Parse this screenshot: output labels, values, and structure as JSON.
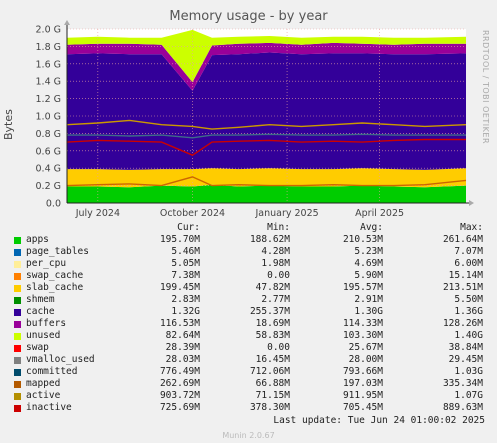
{
  "chart_data": {
    "type": "area",
    "title": "Memory usage - by year",
    "ylabel": "Bytes",
    "yunit": "G",
    "ylim": [
      0,
      2.0
    ],
    "yticks": [
      "0.0",
      "0.2 G",
      "0.4 G",
      "0.6 G",
      "0.8 G",
      "1.0 G",
      "1.2 G",
      "1.4 G",
      "1.6 G",
      "1.8 G",
      "2.0 G"
    ],
    "xticks": [
      "July 2024",
      "October 2024",
      "January 2025",
      "April 2025"
    ],
    "xrange": [
      "2024-06-01",
      "2025-06-24"
    ],
    "xtick_dates": [
      "2024-07-01",
      "2024-10-01",
      "2025-01-01",
      "2025-04-01"
    ],
    "grid": true,
    "stacked_areas": [
      {
        "name": "apps",
        "color": "#00cc00",
        "values": [
          0.19,
          0.19,
          0.18,
          0.2,
          0.19,
          0.21,
          0.19,
          0.2,
          0.19,
          0.19,
          0.2,
          0.19,
          0.18,
          0.2
        ]
      },
      {
        "name": "slab_cache",
        "color": "#ffcc00",
        "values": [
          0.2,
          0.2,
          0.2,
          0.19,
          0.2,
          0.19,
          0.2,
          0.2,
          0.2,
          0.2,
          0.2,
          0.2,
          0.2,
          0.2
        ]
      },
      {
        "name": "cache",
        "color": "#330099",
        "values": [
          1.32,
          1.33,
          1.33,
          1.32,
          0.9,
          1.3,
          1.32,
          1.33,
          1.32,
          1.33,
          1.32,
          1.32,
          1.33,
          1.32
        ]
      },
      {
        "name": "buffers",
        "color": "#990099",
        "values": [
          0.11,
          0.11,
          0.12,
          0.11,
          0.1,
          0.11,
          0.12,
          0.11,
          0.11,
          0.12,
          0.11,
          0.11,
          0.12,
          0.11
        ]
      },
      {
        "name": "unused",
        "color": "#ccff00",
        "values": [
          0.08,
          0.08,
          0.07,
          0.08,
          0.6,
          0.09,
          0.08,
          0.08,
          0.08,
          0.07,
          0.08,
          0.08,
          0.07,
          0.08
        ]
      }
    ],
    "lines": [
      {
        "name": "active",
        "color": "#cc9900",
        "values": [
          0.9,
          0.92,
          0.95,
          0.9,
          0.88,
          0.85,
          0.87,
          0.9,
          0.88,
          0.9,
          0.92,
          0.9,
          0.88,
          0.9
        ]
      },
      {
        "name": "committed",
        "color": "#3e6b8a",
        "values": [
          0.78,
          0.78,
          0.77,
          0.78,
          0.75,
          0.78,
          0.78,
          0.79,
          0.78,
          0.78,
          0.79,
          0.78,
          0.78,
          0.78
        ]
      },
      {
        "name": "inactive",
        "color": "#cc0000",
        "values": [
          0.7,
          0.72,
          0.71,
          0.7,
          0.55,
          0.7,
          0.71,
          0.72,
          0.7,
          0.71,
          0.7,
          0.72,
          0.73,
          0.73
        ]
      },
      {
        "name": "mapped",
        "color": "#cc6600",
        "values": [
          0.2,
          0.21,
          0.22,
          0.2,
          0.3,
          0.2,
          0.21,
          0.2,
          0.2,
          0.21,
          0.2,
          0.2,
          0.21,
          0.26
        ]
      }
    ],
    "x_index_dates": [
      "2024-06-01",
      "2024-07-01",
      "2024-08-01",
      "2024-09-01",
      "2024-10-01",
      "2024-10-20",
      "2024-11-15",
      "2024-12-15",
      "2025-01-15",
      "2025-02-15",
      "2025-03-15",
      "2025-04-15",
      "2025-05-15",
      "2025-06-24"
    ]
  },
  "watermark": "RRDTOOL / TOBI OETIKER",
  "legend": {
    "headers": {
      "cur": "Cur:",
      "min": "Min:",
      "avg": "Avg:",
      "max": "Max:"
    },
    "rows": [
      {
        "name": "apps",
        "color": "#00cc00",
        "cur": "195.70M",
        "min": "188.62M",
        "avg": "210.53M",
        "max": "261.64M"
      },
      {
        "name": "page_tables",
        "color": "#0066b3",
        "cur": "5.46M",
        "min": "4.28M",
        "avg": "5.23M",
        "max": "7.07M"
      },
      {
        "name": "per_cpu",
        "color": "#ffee99",
        "cur": "5.05M",
        "min": "1.98M",
        "avg": "4.69M",
        "max": "6.00M"
      },
      {
        "name": "swap_cache",
        "color": "#ff8000",
        "cur": "7.38M",
        "min": "0.00",
        "avg": "5.90M",
        "max": "15.14M"
      },
      {
        "name": "slab_cache",
        "color": "#ffcc00",
        "cur": "199.45M",
        "min": "47.82M",
        "avg": "195.57M",
        "max": "213.51M"
      },
      {
        "name": "shmem",
        "color": "#008f00",
        "cur": "2.83M",
        "min": "2.77M",
        "avg": "2.91M",
        "max": "5.50M"
      },
      {
        "name": "cache",
        "color": "#330099",
        "cur": "1.32G",
        "min": "255.37M",
        "avg": "1.30G",
        "max": "1.36G"
      },
      {
        "name": "buffers",
        "color": "#990099",
        "cur": "116.53M",
        "min": "18.69M",
        "avg": "114.33M",
        "max": "128.26M"
      },
      {
        "name": "unused",
        "color": "#ccff00",
        "cur": "82.64M",
        "min": "58.83M",
        "avg": "103.30M",
        "max": "1.40G"
      },
      {
        "name": "swap",
        "color": "#ff0000",
        "cur": "28.39M",
        "min": "0.00",
        "avg": "25.67M",
        "max": "38.84M"
      },
      {
        "name": "vmalloc_used",
        "color": "#808080",
        "cur": "28.03M",
        "min": "16.45M",
        "avg": "28.00M",
        "max": "29.45M"
      },
      {
        "name": "committed",
        "color": "#004b6b",
        "cur": "776.49M",
        "min": "712.06M",
        "avg": "793.66M",
        "max": "1.03G"
      },
      {
        "name": "mapped",
        "color": "#b35a00",
        "cur": "262.69M",
        "min": "66.88M",
        "avg": "197.03M",
        "max": "335.34M"
      },
      {
        "name": "active",
        "color": "#b38f00",
        "cur": "903.72M",
        "min": "71.15M",
        "avg": "911.95M",
        "max": "1.07G"
      },
      {
        "name": "inactive",
        "color": "#cc0000",
        "cur": "725.69M",
        "min": "378.30M",
        "avg": "705.45M",
        "max": "889.63M"
      }
    ]
  },
  "last_update": "Last update: Tue Jun 24 01:00:02 2025",
  "footer": "Munin 2.0.67"
}
